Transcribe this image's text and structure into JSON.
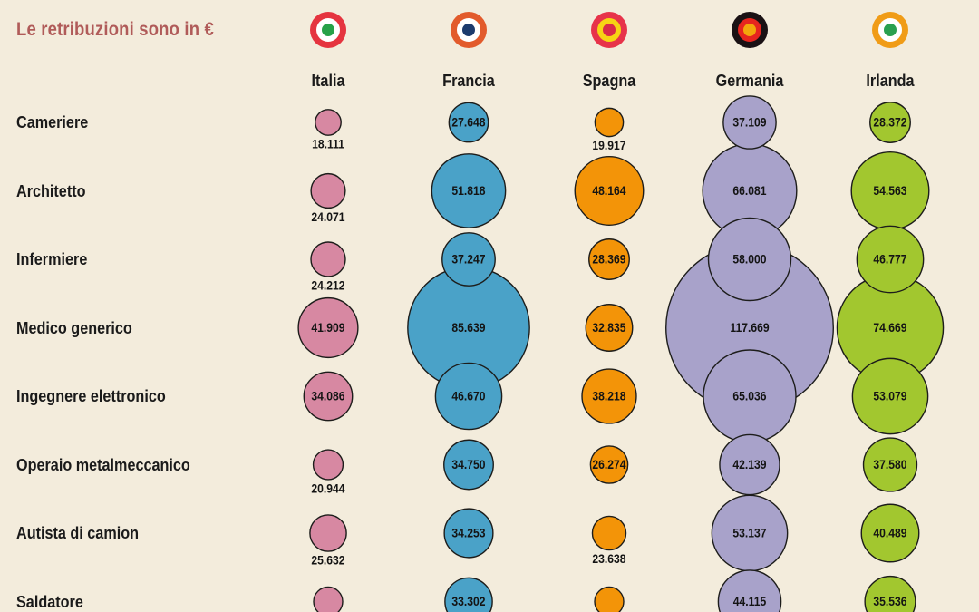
{
  "title": "Le retribuzioni sono in €",
  "chart_data": {
    "type": "bubble",
    "title": "Le retribuzioni sono in €",
    "unit": "EUR",
    "value_format": "thousands separated by dots",
    "legend_position": "top",
    "background_color": "#f3ecdc",
    "bubble_stroke_color": "#1d1d1b",
    "note_label_rule": "values of partially cut-off bottom bubbles are not visible and stored as null",
    "categories": [
      "Cameriere",
      "Architetto",
      "Infermiere",
      "Medico generico",
      "Ingegnere elettronico",
      "Operaio metalmeccanico",
      "Autista di camion",
      "Saldatore"
    ],
    "series": [
      {
        "name": "Italia",
        "color": "#d788a2",
        "flag": {
          "outer": "#e5343f",
          "mid": "#ffffff",
          "center": "#27a148"
        },
        "values": [
          18111,
          24071,
          24212,
          41909,
          34086,
          20944,
          25632,
          null
        ]
      },
      {
        "name": "Francia",
        "color": "#4aa2c8",
        "flag": {
          "outer": "#e25b2c",
          "mid": "#ffffff",
          "center": "#1c3b6d"
        },
        "values": [
          27648,
          51818,
          37247,
          85639,
          46670,
          34750,
          34253,
          33302
        ]
      },
      {
        "name": "Spagna",
        "color": "#f39408",
        "flag": {
          "outer": "#e7334a",
          "mid": "#f7d414",
          "center": "#d92b47"
        },
        "values": [
          19917,
          48164,
          28369,
          32835,
          38218,
          26274,
          23638,
          null
        ]
      },
      {
        "name": "Germania",
        "color": "#a8a2ca",
        "flag": {
          "outer": "#191114",
          "mid": "#e6251f",
          "center": "#f3a60c"
        },
        "values": [
          37109,
          66081,
          58000,
          117669,
          65036,
          42139,
          53137,
          44115
        ]
      },
      {
        "name": "Irlanda",
        "color": "#a2c72f",
        "flag": {
          "outer": "#f09c17",
          "mid": "#ffffff",
          "center": "#2aa04f"
        },
        "values": [
          28372,
          54563,
          46777,
          74669,
          53079,
          37580,
          40489,
          35536
        ]
      }
    ]
  }
}
